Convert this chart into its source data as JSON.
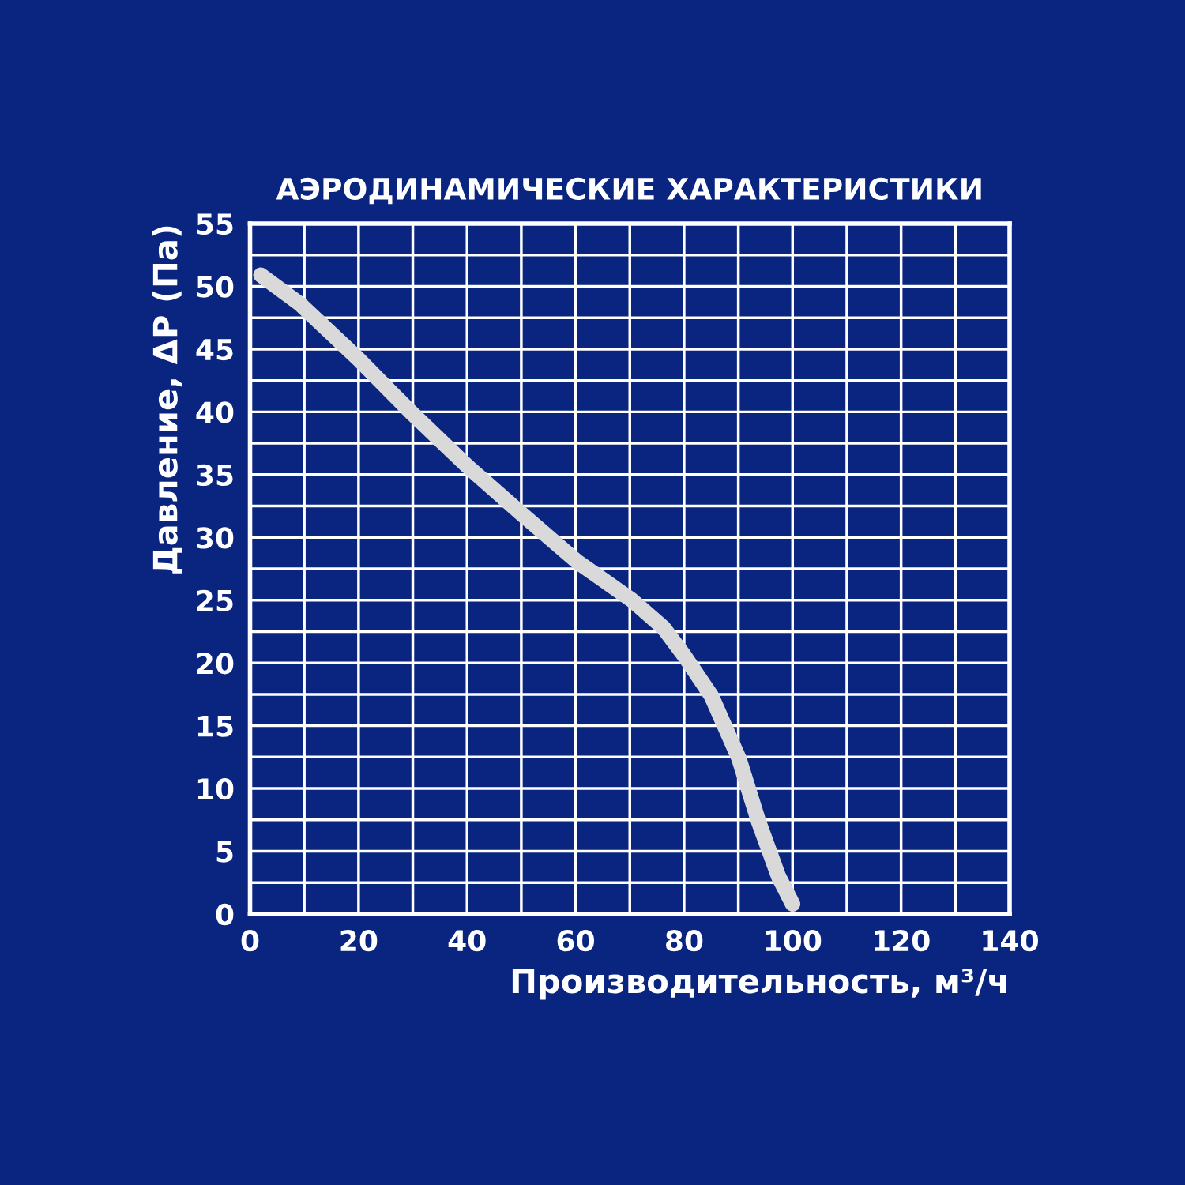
{
  "chart_data": {
    "type": "line",
    "title": "АЭРОДИНАМИЧЕСКИЕ ХАРАКТЕРИСТИКИ",
    "xlabel": "Производительность, м³/ч",
    "ylabel": "Давление, ΔP (Па)",
    "series": [
      {
        "color": "#d9d9d9",
        "x": [
          2,
          9.2,
          20,
          29.6,
          40,
          50,
          60.2,
          70.4,
          76.2,
          80,
          85,
          90.1,
          93.7,
          97.4,
          100
        ],
        "values": [
          50.9,
          48.6,
          44.2,
          40,
          35.7,
          31.9,
          28.1,
          25,
          22.8,
          20.6,
          17.4,
          12.4,
          7.4,
          3,
          0.8
        ]
      }
    ],
    "xlim": [
      0,
      140
    ],
    "ylim": [
      0,
      55
    ],
    "xticks": [
      0,
      {
        "value": 10,
        "label": null
      },
      20,
      {
        "value": 30,
        "label": null
      },
      40,
      {
        "value": 50,
        "label": null
      },
      60,
      {
        "value": 70,
        "label": null
      },
      80,
      {
        "value": 90,
        "label": null
      },
      100,
      {
        "value": 110,
        "label": null
      },
      120,
      {
        "value": 130,
        "label": null
      },
      140
    ],
    "yticks": [
      0,
      {
        "value": 2.5,
        "label": null
      },
      5,
      {
        "value": 7.5,
        "label": null
      },
      10,
      {
        "value": 12.5,
        "label": null
      },
      15,
      {
        "value": 17.5,
        "label": null
      },
      20,
      {
        "value": 22.5,
        "label": null
      },
      25,
      {
        "value": 27.5,
        "label": null
      },
      30,
      {
        "value": 32.5,
        "label": null
      },
      35,
      {
        "value": 37.5,
        "label": null
      },
      40,
      {
        "value": 42.5,
        "label": null
      },
      45,
      {
        "value": 47.5,
        "label": null
      },
      50,
      {
        "value": 52.5,
        "label": null
      },
      55
    ],
    "grid": true,
    "line_style": "solid"
  }
}
